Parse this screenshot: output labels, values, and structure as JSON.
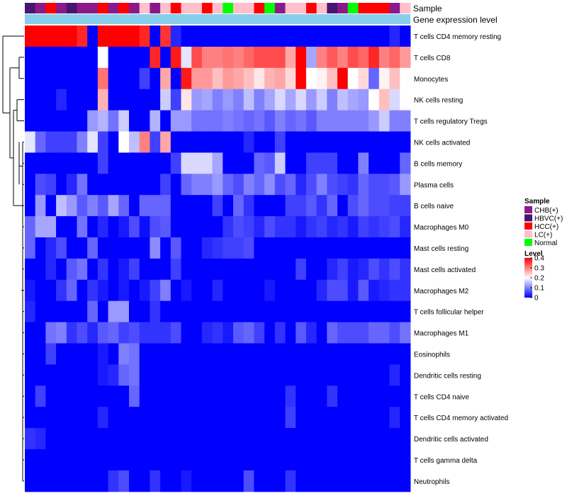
{
  "chart_data": {
    "type": "heatmap",
    "title": "",
    "annotation_labels": [
      "Sample",
      "Gene expression level"
    ],
    "sample_groups": [
      "CHB(+)",
      "HBVC(+)",
      "HCC(+)",
      "LC(+)",
      "Normal"
    ],
    "sample_colors": {
      "CHB(+)": "#8B1A89",
      "HBVC(+)": "#4A1470",
      "HCC(+)": "#FF0000",
      "LC(+)": "#FFC0CB",
      "Normal": "#00FF00"
    },
    "samples": [
      "HBVC(+)",
      "CHB(+)",
      "HCC(+)",
      "CHB(+)",
      "HBVC(+)",
      "CHB(+)",
      "CHB(+)",
      "HCC(+)",
      "CHB(+)",
      "HCC(+)",
      "CHB(+)",
      "LC(+)",
      "CHB(+)",
      "LC(+)",
      "HCC(+)",
      "LC(+)",
      "LC(+)",
      "HCC(+)",
      "LC(+)",
      "Normal",
      "LC(+)",
      "LC(+)",
      "HCC(+)",
      "Normal",
      "CHB(+)",
      "LC(+)",
      "LC(+)",
      "HCC(+)",
      "LC(+)",
      "HBVC(+)",
      "CHB(+)",
      "Normal",
      "HCC(+)",
      "HCC(+)",
      "HCC(+)",
      "CHB(+)",
      "LC(+)"
    ],
    "expression_bar_color": "#87CEEB",
    "rows": [
      "T cells CD4 memory resting",
      "T cells CD8",
      "Monocytes",
      "NK cells resting",
      "T cells regulatory  Tregs",
      "NK cells activated",
      "B cells memory",
      "Plasma cells",
      "B cells naive",
      "Macrophages M0",
      "Mast cells resting",
      "Mast cells activated",
      "Macrophages M2",
      "T cells follicular helper",
      "Macrophages M1",
      "Eosinophils",
      "Dendritic cells resting",
      "T cells CD4 naive",
      "T cells CD4 memory activated",
      "Dendritic cells activated",
      "T cells gamma delta",
      "Neutrophils"
    ],
    "values": [
      [
        0.4,
        0.4,
        0.4,
        0.4,
        0.4,
        0.37,
        0,
        0.4,
        0.4,
        0.4,
        0.4,
        0.37,
        0,
        0.36,
        0.03,
        0,
        0,
        0,
        0,
        0,
        0,
        0,
        0,
        0,
        0,
        0,
        0,
        0,
        0,
        0,
        0,
        0,
        0,
        0,
        0,
        0.03,
        0
      ],
      [
        0,
        0,
        0,
        0,
        0,
        0,
        0,
        0.2,
        0,
        0,
        0,
        0,
        0.37,
        0,
        0.38,
        0.18,
        0.34,
        0.3,
        0.3,
        0.31,
        0.3,
        0.32,
        0.34,
        0.34,
        0.34,
        0.27,
        0.4,
        0.13,
        0.3,
        0.33,
        0.3,
        0.34,
        0.32,
        0.37,
        0.3,
        0.32,
        0.28
      ],
      [
        0,
        0,
        0,
        0,
        0,
        0,
        0,
        0.31,
        0,
        0,
        0,
        0.05,
        0,
        0.27,
        0,
        0.38,
        0.28,
        0.28,
        0.25,
        0.28,
        0.27,
        0.25,
        0.22,
        0.26,
        0.27,
        0.23,
        0.4,
        0.2,
        0.21,
        0.25,
        0.4,
        0.2,
        0.23,
        0.08,
        0.21,
        0.25,
        0.2
      ],
      [
        0,
        0,
        0,
        0.03,
        0,
        0,
        0,
        0.26,
        0,
        0,
        0,
        0,
        0,
        0.16,
        0.05,
        0.22,
        0.12,
        0.13,
        0.1,
        0.12,
        0.1,
        0.15,
        0.1,
        0.13,
        0.17,
        0.13,
        0.17,
        0.12,
        0.16,
        0.1,
        0.15,
        0.13,
        0.12,
        0.2,
        0.25,
        0.17,
        0.2
      ],
      [
        0,
        0,
        0,
        0,
        0,
        0,
        0.12,
        0.14,
        0.09,
        0.16,
        0,
        0,
        0.14,
        0,
        0.12,
        0.12,
        0.09,
        0.09,
        0.09,
        0.1,
        0.09,
        0.08,
        0.09,
        0.07,
        0.1,
        0.08,
        0.09,
        0.07,
        0.1,
        0.1,
        0.1,
        0.1,
        0.1,
        0.12,
        0.16,
        0.1,
        0.1
      ],
      [
        0.18,
        0.08,
        0.05,
        0.05,
        0.05,
        0.1,
        0.18,
        0.05,
        0,
        0.2,
        0.15,
        0.3,
        0.05,
        0.27,
        0,
        0,
        0,
        0,
        0,
        0,
        0,
        0.03,
        0,
        0,
        0.05,
        0,
        0,
        0,
        0,
        0,
        0,
        0,
        0,
        0,
        0,
        0,
        0
      ],
      [
        0,
        0,
        0,
        0,
        0,
        0,
        0,
        0.05,
        0,
        0,
        0,
        0,
        0,
        0,
        0.05,
        0.17,
        0.17,
        0.17,
        0.13,
        0,
        0,
        0,
        0.08,
        0.07,
        0.16,
        0,
        0,
        0.05,
        0.05,
        0.05,
        0,
        0,
        0.1,
        0,
        0,
        0,
        0.08
      ],
      [
        0,
        0.06,
        0.05,
        0,
        0.03,
        0.09,
        0,
        0,
        0,
        0,
        0,
        0,
        0,
        0.05,
        0,
        0.08,
        0.1,
        0.1,
        0.12,
        0.08,
        0.06,
        0.1,
        0.08,
        0.11,
        0.06,
        0.08,
        0.03,
        0.06,
        0.1,
        0.06,
        0.05,
        0.04,
        0.08,
        0.06,
        0.06,
        0.07,
        0.12
      ],
      [
        0,
        0.12,
        0,
        0.15,
        0.12,
        0.07,
        0.1,
        0.07,
        0.13,
        0.08,
        0,
        0.08,
        0.08,
        0.08,
        0,
        0,
        0,
        0,
        0.05,
        0,
        0.08,
        0.04,
        0,
        0,
        0,
        0.05,
        0.05,
        0.07,
        0.04,
        0.08,
        0,
        0.06,
        0.08,
        0.06,
        0.06,
        0.05,
        0.05
      ],
      [
        0.08,
        0.13,
        0.13,
        0,
        0,
        0.09,
        0,
        0.03,
        0,
        0.02,
        0.06,
        0.01,
        0.06,
        0.07,
        0,
        0,
        0,
        0,
        0,
        0.04,
        0.06,
        0.05,
        0.03,
        0.06,
        0.04,
        0.04,
        0.02,
        0.04,
        0.05,
        0.03,
        0.04,
        0.02,
        0.05,
        0.04,
        0.05,
        0.06,
        0.03
      ],
      [
        0.08,
        0,
        0.03,
        0.06,
        0,
        0,
        0.08,
        0,
        0,
        0,
        0,
        0,
        0.11,
        0,
        0.07,
        0,
        0,
        0.03,
        0.04,
        0.05,
        0.05,
        0.06,
        0,
        0,
        0,
        0,
        0,
        0,
        0,
        0,
        0,
        0,
        0,
        0,
        0,
        0,
        0
      ],
      [
        0,
        0,
        0.03,
        0,
        0.07,
        0.09,
        0,
        0.04,
        0,
        0.02,
        0.05,
        0,
        0,
        0,
        0.05,
        0,
        0,
        0,
        0,
        0,
        0,
        0,
        0,
        0,
        0,
        0,
        0.05,
        0,
        0,
        0.03,
        0.05,
        0.02,
        0.03,
        0.06,
        0.04,
        0.06,
        0.04
      ],
      [
        0.02,
        0,
        0,
        0.04,
        0.08,
        0,
        0.04,
        0.02,
        0,
        0.02,
        0,
        0.02,
        0.05,
        0.1,
        0,
        0.02,
        0,
        0,
        0.03,
        0,
        0,
        0,
        0,
        0.02,
        0,
        0,
        0,
        0,
        0.03,
        0.06,
        0.06,
        0.02,
        0.07,
        0.02,
        0.03,
        0.04,
        0.04
      ],
      [
        0.03,
        0,
        0,
        0,
        0,
        0,
        0.08,
        0,
        0.12,
        0.12,
        0,
        0,
        0.04,
        0,
        0,
        0,
        0,
        0,
        0,
        0,
        0,
        0,
        0,
        0,
        0,
        0,
        0,
        0,
        0,
        0,
        0,
        0,
        0,
        0,
        0,
        0,
        0
      ],
      [
        0,
        0,
        0.09,
        0.1,
        0.04,
        0.06,
        0.03,
        0.07,
        0.08,
        0.05,
        0.06,
        0.04,
        0.04,
        0.04,
        0.06,
        0,
        0,
        0.03,
        0.04,
        0.02,
        0.07,
        0.08,
        0.05,
        0,
        0.04,
        0,
        0.07,
        0.03,
        0,
        0.08,
        0.06,
        0.06,
        0.06,
        0.08,
        0.08,
        0.06,
        0.09
      ],
      [
        0,
        0,
        0.05,
        0,
        0,
        0,
        0,
        0.02,
        0,
        0.1,
        0.09,
        0,
        0,
        0,
        0,
        0,
        0,
        0,
        0,
        0,
        0,
        0,
        0,
        0,
        0,
        0,
        0,
        0,
        0,
        0,
        0,
        0,
        0,
        0,
        0,
        0,
        0
      ],
      [
        0,
        0,
        0,
        0,
        0,
        0,
        0,
        0.02,
        0.03,
        0.08,
        0.09,
        0,
        0,
        0,
        0,
        0,
        0,
        0,
        0,
        0,
        0,
        0,
        0,
        0,
        0,
        0,
        0,
        0,
        0,
        0,
        0,
        0,
        0,
        0,
        0,
        0.03,
        0
      ],
      [
        0,
        0.05,
        0,
        0,
        0,
        0,
        0,
        0,
        0,
        0,
        0.08,
        0,
        0,
        0,
        0,
        0,
        0,
        0,
        0,
        0,
        0,
        0,
        0,
        0,
        0,
        0.04,
        0,
        0,
        0,
        0.04,
        0,
        0,
        0,
        0,
        0,
        0,
        0
      ],
      [
        0,
        0,
        0,
        0,
        0,
        0,
        0,
        0.03,
        0,
        0,
        0,
        0,
        0,
        0,
        0,
        0,
        0,
        0,
        0,
        0,
        0,
        0,
        0,
        0,
        0,
        0.05,
        0,
        0,
        0,
        0,
        0,
        0,
        0,
        0,
        0,
        0.03,
        0
      ],
      [
        0.04,
        0.03,
        0,
        0,
        0,
        0,
        0,
        0,
        0,
        0,
        0,
        0,
        0,
        0,
        0,
        0,
        0,
        0,
        0,
        0,
        0,
        0,
        0,
        0,
        0,
        0,
        0,
        0,
        0,
        0,
        0,
        0,
        0,
        0,
        0,
        0,
        0
      ],
      [
        0,
        0,
        0,
        0,
        0,
        0,
        0,
        0,
        0,
        0,
        0,
        0,
        0,
        0,
        0,
        0,
        0,
        0,
        0,
        0,
        0,
        0,
        0,
        0,
        0,
        0,
        0,
        0,
        0,
        0,
        0,
        0,
        0,
        0,
        0,
        0,
        0
      ],
      [
        0,
        0,
        0,
        0,
        0,
        0,
        0,
        0,
        0.04,
        0.06,
        0,
        0,
        0.04,
        0,
        0,
        0.02,
        0,
        0,
        0,
        0,
        0,
        0.06,
        0,
        0,
        0,
        0.04,
        0,
        0,
        0,
        0,
        0,
        0,
        0,
        0,
        0,
        0,
        0
      ]
    ],
    "legend_sample": {
      "title": "Sample",
      "entries": [
        "CHB(+)",
        "HBVC(+)",
        "HCC(+)",
        "LC(+)",
        "Normal"
      ]
    },
    "legend_level": {
      "title": "Level",
      "ticks": [
        "0.4",
        "0.3",
        "0.2",
        "0.1",
        "0"
      ],
      "range": [
        0,
        0.4
      ]
    },
    "colorscale": {
      "low": "#0000FF",
      "mid": "#FFFFFF",
      "high": "#FF0000",
      "mid_value": 0.2
    }
  }
}
